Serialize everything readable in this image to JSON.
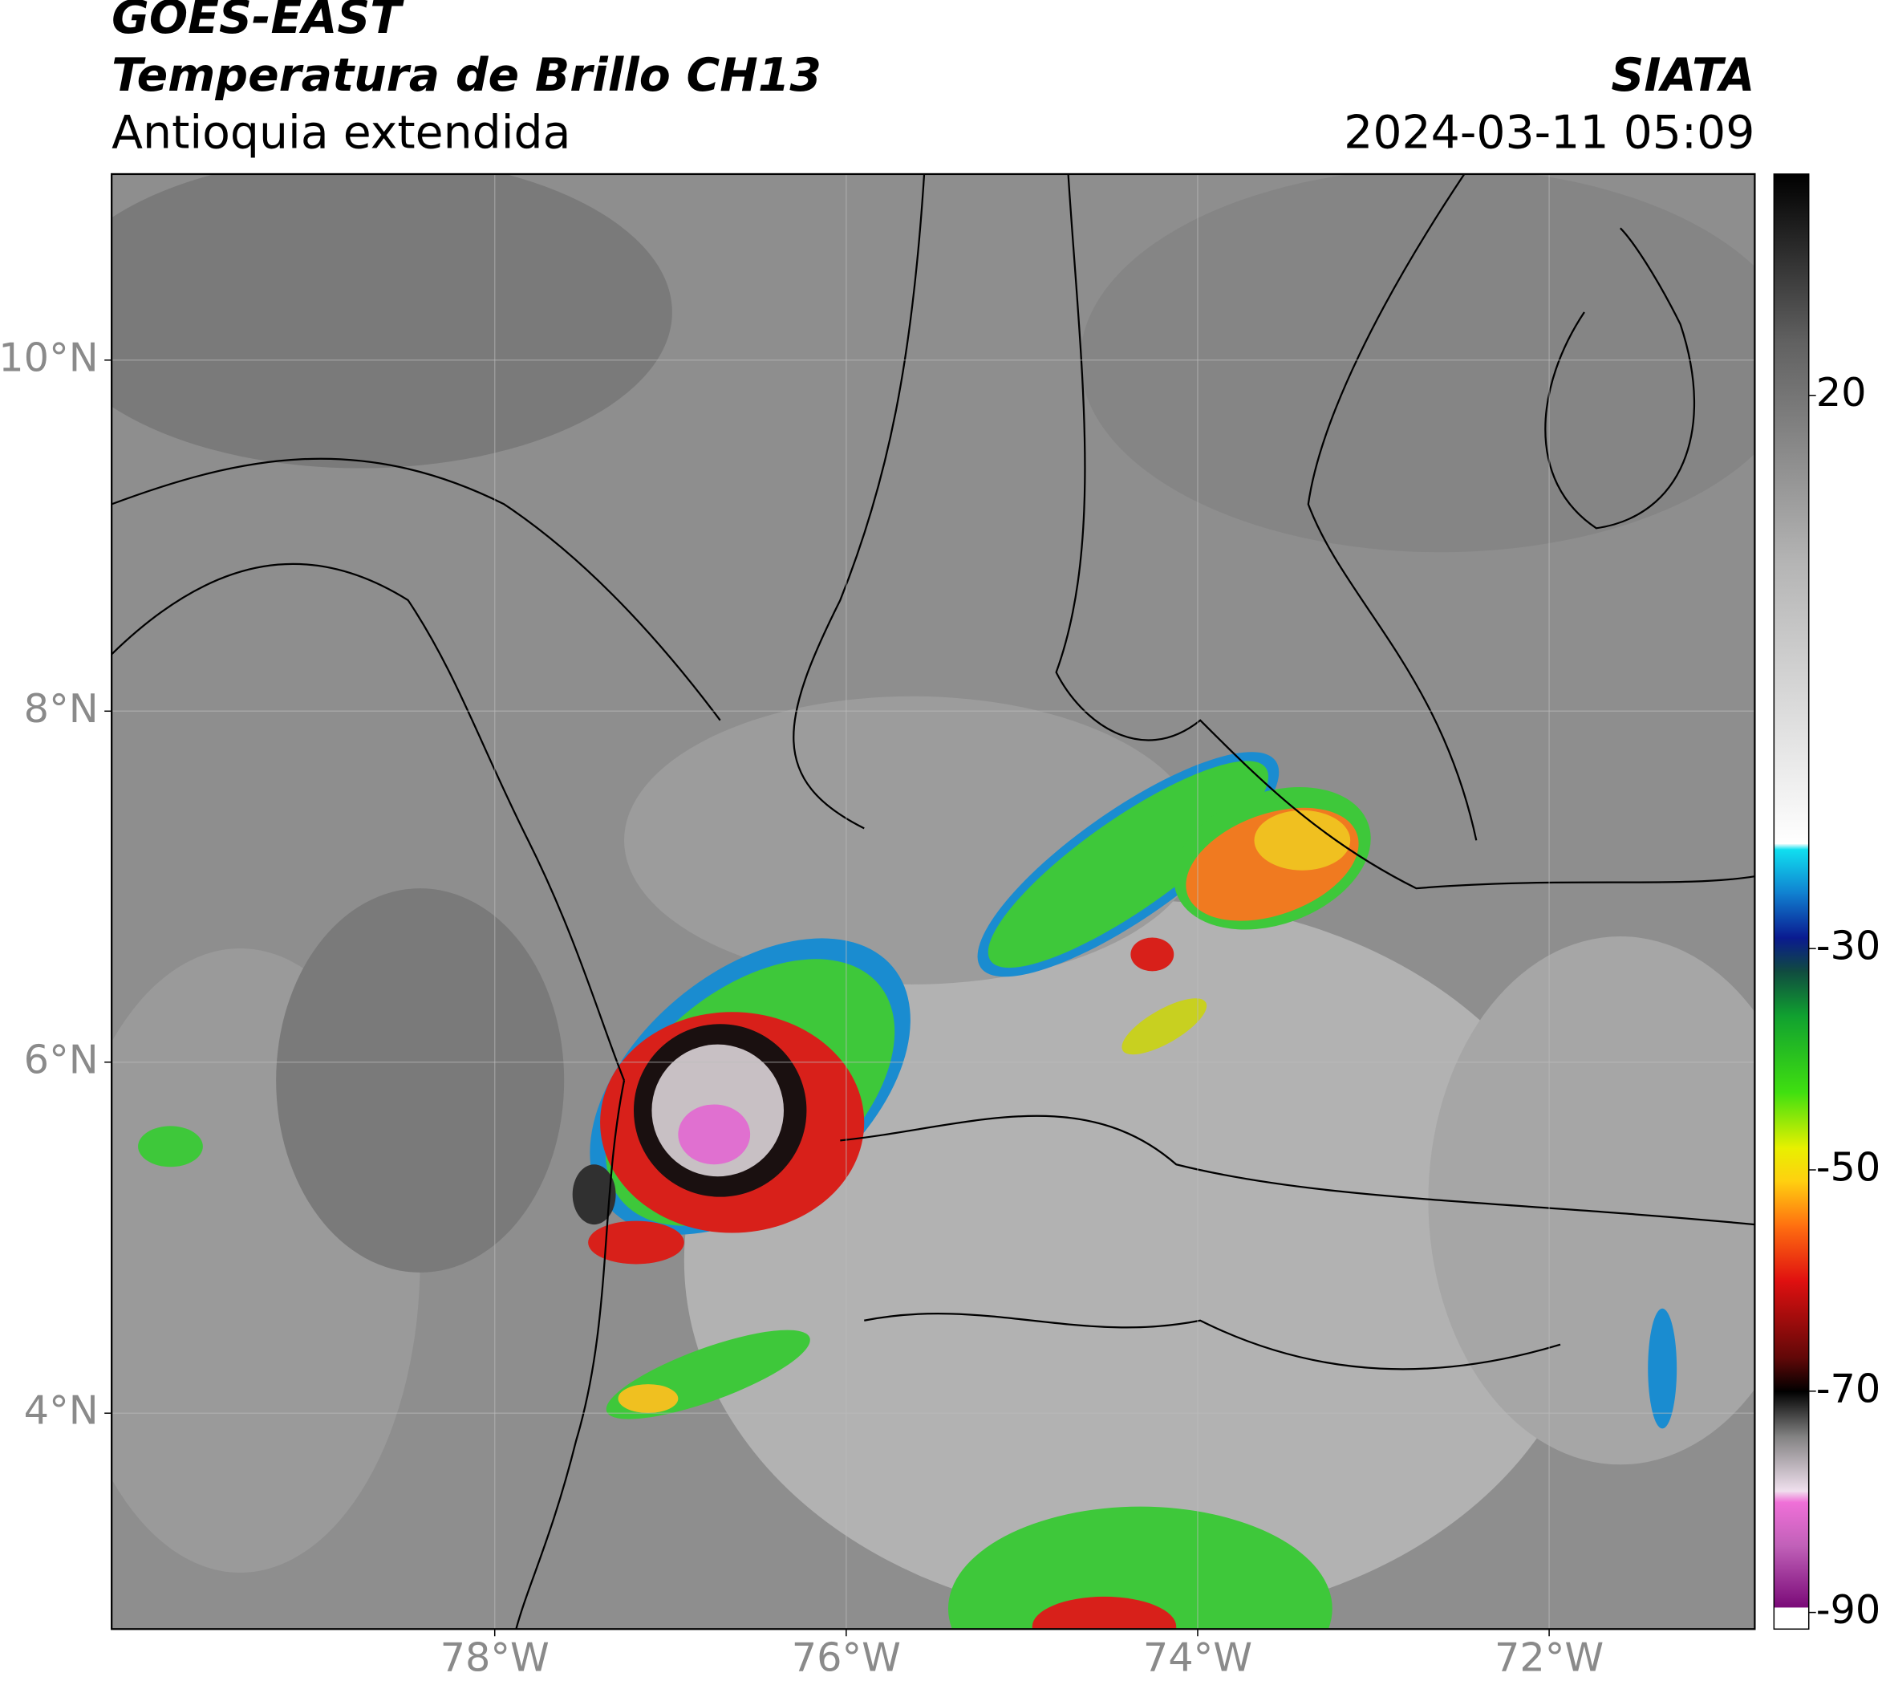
{
  "header": {
    "title": "GOES-EAST",
    "subtitle": "Temperatura de Brillo CH13",
    "region": "Antioquia extendida",
    "source": "SIATA",
    "datetime": "2024-03-11 05:09"
  },
  "map": {
    "xlim": [
      -80.18,
      -70.83
    ],
    "ylim": [
      2.77,
      11.06
    ],
    "xticks": [
      {
        "value": -78,
        "label": "78°W"
      },
      {
        "value": -76,
        "label": "76°W"
      },
      {
        "value": -74,
        "label": "74°W"
      },
      {
        "value": -72,
        "label": "72°W"
      }
    ],
    "yticks": [
      {
        "value": 10,
        "label": "10°N"
      },
      {
        "value": 8,
        "label": "8°N"
      },
      {
        "value": 6,
        "label": "6°N"
      },
      {
        "value": 4,
        "label": "4°N"
      }
    ],
    "grid": true
  },
  "colorbar": {
    "lim": [
      -91.5,
      40
    ],
    "ticks": [
      20,
      -30,
      -50,
      -70,
      -90
    ],
    "colormap": [
      {
        "value": -91.5,
        "color": "#ffffff"
      },
      {
        "value": -89.5,
        "color": "#ffffff"
      },
      {
        "value": -89.5,
        "color": "#7a0a78"
      },
      {
        "value": -84,
        "color": "#c060b8"
      },
      {
        "value": -80,
        "color": "#f070d8"
      },
      {
        "value": -79,
        "color": "#f0e0ee"
      },
      {
        "value": -74,
        "color": "#808080"
      },
      {
        "value": -70,
        "color": "#000000"
      },
      {
        "value": -67,
        "color": "#600808"
      },
      {
        "value": -60,
        "color": "#e01010"
      },
      {
        "value": -55,
        "color": "#ff7010"
      },
      {
        "value": -51,
        "color": "#ffd010"
      },
      {
        "value": -48,
        "color": "#e8f000"
      },
      {
        "value": -43,
        "color": "#40e010"
      },
      {
        "value": -36,
        "color": "#10a030"
      },
      {
        "value": -32,
        "color": "#104a40"
      },
      {
        "value": -29,
        "color": "#0a1a90"
      },
      {
        "value": -25,
        "color": "#1080d0"
      },
      {
        "value": -21,
        "color": "#10e0f0"
      },
      {
        "value": -20.5,
        "color": "#ffffff"
      },
      {
        "value": 5,
        "color": "#b4b4b4"
      },
      {
        "value": 25,
        "color": "#606060"
      },
      {
        "value": 40,
        "color": "#000000"
      }
    ]
  }
}
